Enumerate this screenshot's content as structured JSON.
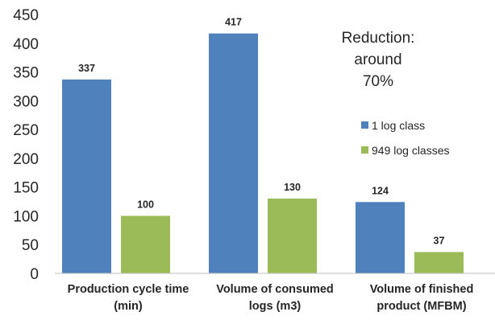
{
  "chart_data": {
    "type": "bar",
    "categories": [
      [
        "Production cycle time",
        "(min)"
      ],
      [
        "Volume of consumed",
        "logs (m3)"
      ],
      [
        "Volume of finished",
        "product  (MFBM)"
      ]
    ],
    "series": [
      {
        "name": "1 log class",
        "values": [
          337,
          417,
          124
        ],
        "color": "#4F81BD"
      },
      {
        "name": "949 log classes",
        "values": [
          100,
          130,
          37
        ],
        "color": "#9BBB59"
      }
    ],
    "ylim": [
      0,
      450
    ],
    "yticks": [
      0,
      50,
      100,
      150,
      200,
      250,
      300,
      350,
      400,
      450
    ],
    "grid": false,
    "legend_position": "right",
    "annotation": [
      "Reduction:",
      "around",
      "70%"
    ]
  }
}
